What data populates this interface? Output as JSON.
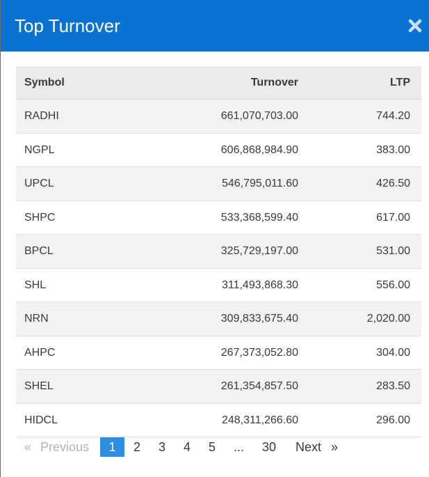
{
  "modal": {
    "title": "Top Turnover",
    "close_icon": "close-icon"
  },
  "table": {
    "headers": {
      "symbol": "Symbol",
      "turnover": "Turnover",
      "ltp": "LTP"
    },
    "rows": [
      {
        "symbol": "RADHI",
        "turnover": "661,070,703.00",
        "ltp": "744.20"
      },
      {
        "symbol": "NGPL",
        "turnover": "606,868,984.90",
        "ltp": "383.00"
      },
      {
        "symbol": "UPCL",
        "turnover": "546,795,011.60",
        "ltp": "426.50"
      },
      {
        "symbol": "SHPC",
        "turnover": "533,368,599.40",
        "ltp": "617.00"
      },
      {
        "symbol": "BPCL",
        "turnover": "325,729,197.00",
        "ltp": "531.00"
      },
      {
        "symbol": "SHL",
        "turnover": "311,493,868.30",
        "ltp": "556.00"
      },
      {
        "symbol": "NRN",
        "turnover": "309,833,675.40",
        "ltp": "2,020.00"
      },
      {
        "symbol": "AHPC",
        "turnover": "267,373,052.80",
        "ltp": "304.00"
      },
      {
        "symbol": "SHEL",
        "turnover": "261,354,857.50",
        "ltp": "283.50"
      },
      {
        "symbol": "HIDCL",
        "turnover": "248,311,266.60",
        "ltp": "296.00"
      }
    ]
  },
  "pagination": {
    "prev_glyph": "«",
    "prev_label": "Previous",
    "pages": [
      "1",
      "2",
      "3",
      "4",
      "5"
    ],
    "active_page": "1",
    "ellipsis": "...",
    "last_page": "30",
    "next_label": "Next",
    "next_glyph": "»"
  },
  "colors": {
    "header_bg": "#0a72d0",
    "active_page_bg": "#2e8fe0",
    "row_stripe": "#f2f2f2",
    "table_header_bg": "#ebebeb"
  }
}
